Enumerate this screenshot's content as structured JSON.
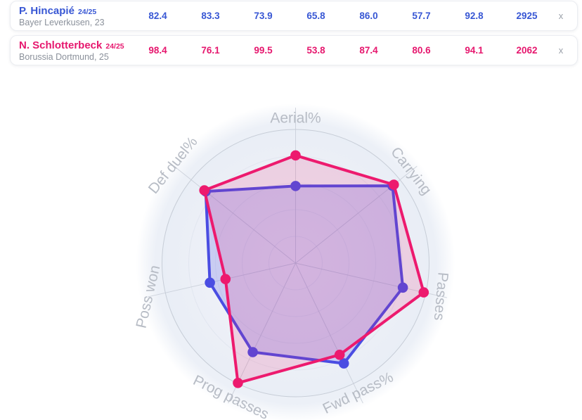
{
  "players": [
    {
      "name": "P. Hincapié",
      "season": "24/25",
      "subtitle": "Bayer Leverkusen, 23",
      "color": "#3857d4",
      "values": [
        "82.4",
        "83.3",
        "73.9",
        "65.8",
        "86.0",
        "57.7",
        "92.8",
        "2925"
      ],
      "remove_label": "x"
    },
    {
      "name": "N. Schlotterbeck",
      "season": "24/25",
      "subtitle": "Borussia Dortmund, 25",
      "color": "#e6176e",
      "values": [
        "98.4",
        "76.1",
        "99.5",
        "53.8",
        "87.4",
        "80.6",
        "94.1",
        "2062"
      ],
      "remove_label": "x"
    }
  ],
  "chart_data": {
    "type": "radar",
    "title": "",
    "categories": [
      "Aerial%",
      "Carrying",
      "Passes",
      "Fwd pass%",
      "Prog passes",
      "Poss won",
      "Def duel%"
    ],
    "axis_range": [
      0,
      100
    ],
    "grid": true,
    "legend_position": "none",
    "series": [
      {
        "name": "P. Hincapié 24/25",
        "color": "#4a4de2",
        "fill_opacity": 0.22,
        "values": [
          57.7,
          92.8,
          82.4,
          83.3,
          73.9,
          65.8,
          86.0
        ]
      },
      {
        "name": "N. Schlotterbeck 24/25",
        "color": "#ed1a6e",
        "fill_opacity": 0.15,
        "values": [
          80.6,
          94.1,
          98.4,
          76.1,
          99.5,
          53.8,
          87.4
        ]
      }
    ],
    "label_color": "#b7bcc5",
    "grid_color": "#c7cdd7",
    "inner_ring_color": "#dde2ec",
    "disc_color": "#ecf0f7",
    "inner_bg_center": "#f6f3f9",
    "inner_bg_edge": "#e9eef6"
  }
}
